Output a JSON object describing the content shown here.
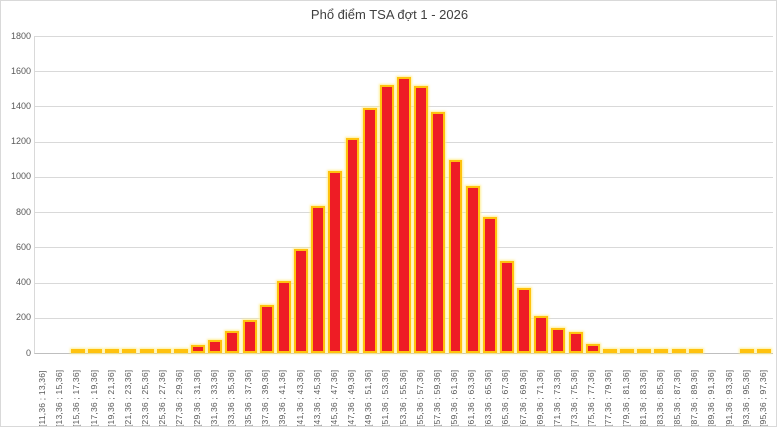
{
  "title": "Phổ điểm TSA đợt 1 - 2026",
  "colors": {
    "bar_fill": "#ee1c25",
    "bar_border": "#ffc20e",
    "gridline": "#d9d9d9",
    "axis_line": "#bfbfbf",
    "axis_text": "#595959",
    "title_text": "#404040",
    "background": "#ffffff"
  },
  "chart_data": {
    "type": "bar",
    "title": "Phổ điểm TSA đợt 1 - 2026",
    "xlabel": "",
    "ylabel": "",
    "ylim": [
      0,
      1800
    ],
    "ytick_step": 200,
    "yticks": [
      0,
      200,
      400,
      600,
      800,
      1000,
      1200,
      1400,
      1600,
      1800
    ],
    "grid": true,
    "legend": "none",
    "categories": [
      "[11,36 ; 13,36]",
      "[13,36 ; 15,36]",
      "[15,36 ; 17,36]",
      "[17,36 ; 19,36]",
      "[19,36 ; 21,36]",
      "[21,36 ; 23,36]",
      "[23,36 ; 25,36]",
      "[25,36 ; 27,36]",
      "[27,36 ; 29,36]",
      "[29,36 ; 31,36]",
      "[31,36 ; 33,36]",
      "[33,36 ; 35,36]",
      "[35,36 ; 37,36]",
      "[37,36 ; 39,36]",
      "[39,36 ; 41,36]",
      "[41,36 ; 43,36]",
      "[43,36 ; 45,36]",
      "[45,36 ; 47,36]",
      "[47,36 ; 49,36]",
      "[49,36 ; 51,36]",
      "[51,36 ; 53,36]",
      "[53,36 ; 55,36]",
      "[55,36 ; 57,36]",
      "[57,36 ; 59,36]",
      "[59,36 ; 61,36]",
      "[61,36 ; 63,36]",
      "[63,36 ; 65,36]",
      "[65,36 ; 67,36]",
      "[67,36 ; 69,36]",
      "[69,36 ; 71,36]",
      "[71,36 ; 73,36]",
      "[73,36 ; 75,36]",
      "[75,36 ; 77,36]",
      "[77,36 ; 79,36]",
      "[79,36 ; 81,36]",
      "[81,36 ; 83,36]",
      "[83,36 ; 85,36]",
      "[85,36 ; 87,36]",
      "[87,36 ; 89,36]",
      "[89,36 ; 91,36]",
      "[91,36 ; 93,36]",
      "[93,36 ; 95,36]",
      "[95,36 ; 97,36]"
    ],
    "values": [
      0,
      0,
      5,
      6,
      7,
      8,
      10,
      14,
      25,
      45,
      75,
      125,
      190,
      275,
      410,
      590,
      835,
      1035,
      1220,
      1390,
      1520,
      1570,
      1515,
      1370,
      1095,
      950,
      770,
      520,
      370,
      210,
      142,
      120,
      53,
      25,
      22,
      12,
      7,
      6,
      5,
      0,
      0,
      6,
      9
    ]
  }
}
